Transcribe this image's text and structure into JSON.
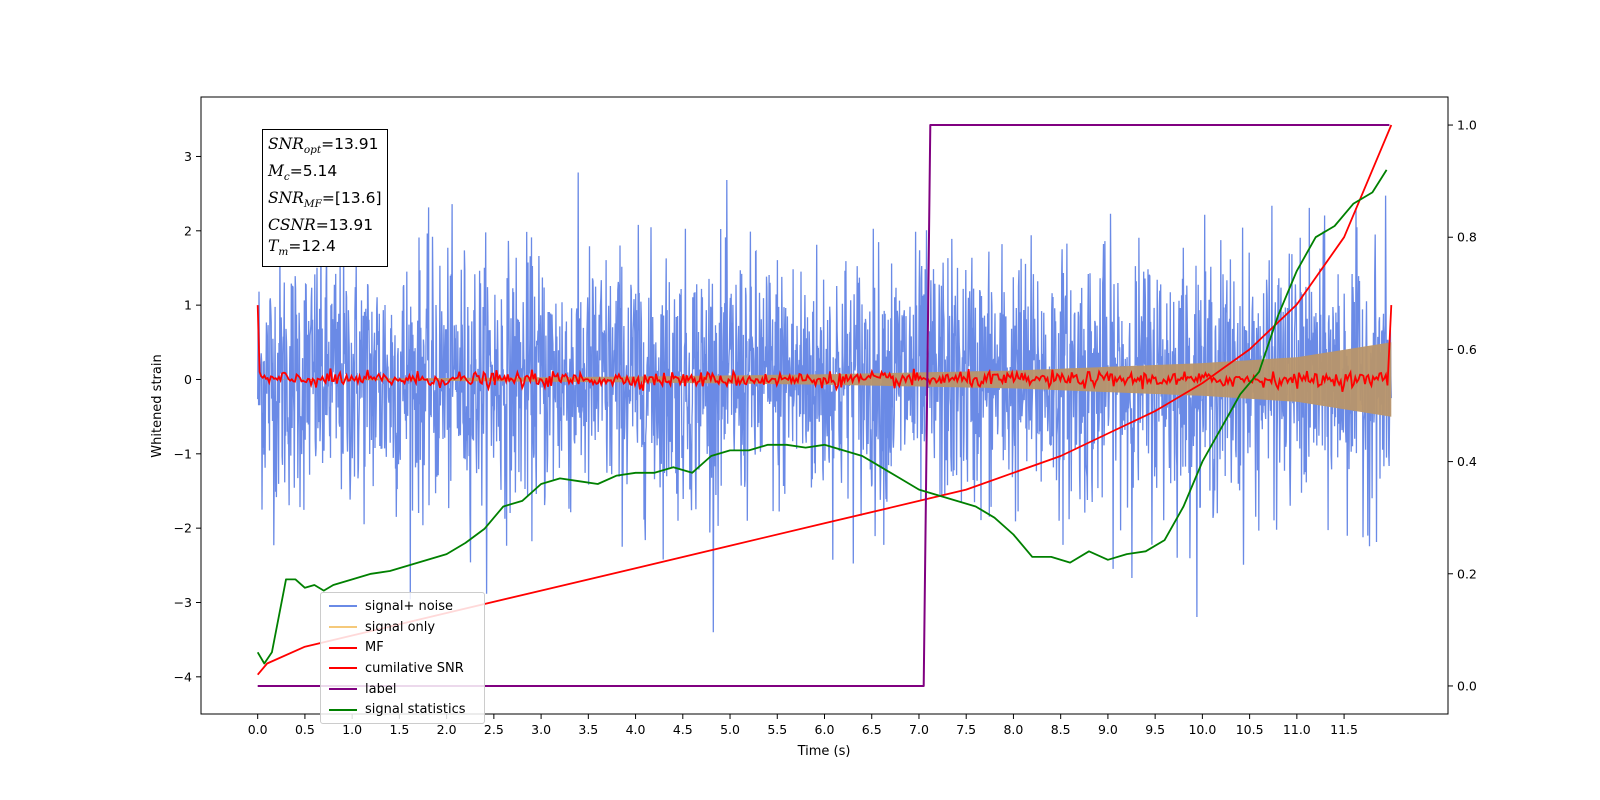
{
  "chart_data": {
    "type": "line",
    "xlabel": "Time (s)",
    "ylabel": "Whitened strain",
    "x_ticks": [
      "0.0",
      "0.5",
      "1.0",
      "1.5",
      "2.0",
      "2.5",
      "3.0",
      "3.5",
      "4.0",
      "4.5",
      "5.0",
      "5.5",
      "6.0",
      "6.5",
      "7.0",
      "7.5",
      "8.0",
      "8.5",
      "9.0",
      "9.5",
      "10.0",
      "10.5",
      "11.0",
      "11.5"
    ],
    "xlim": [
      -0.6,
      12.6
    ],
    "ylim_left": [
      -4.5,
      3.8
    ],
    "ylim_right": [
      -0.05,
      1.05
    ],
    "y_ticks_left": [
      "3",
      "2",
      "1",
      "0",
      "−1",
      "−2",
      "−3",
      "−4"
    ],
    "y_ticks_right": [
      "1.0",
      "0.8",
      "0.6",
      "0.4",
      "0.2",
      "0.0"
    ],
    "annotation": {
      "snr_opt_label": "SNR",
      "snr_opt_sub": "opt",
      "snr_opt_value": "=13.91",
      "mc_label": "M",
      "mc_sub": "c",
      "mc_value": "=5.14",
      "snr_mf_label": "SNR",
      "snr_mf_sub": "MF",
      "snr_mf_value": "=[13.6]",
      "csnr_label": "CSNR",
      "csnr_value": "=13.91",
      "tm_label": "T",
      "tm_sub": "m",
      "tm_value": "=12.4"
    },
    "series": [
      {
        "name": "signal+ noise",
        "color": "#6a8ae6",
        "axis": "left",
        "noise_sigma": 0.85,
        "t_range": [
          0,
          12
        ]
      },
      {
        "name": "signal only",
        "color": "#f5c97a",
        "axis": "left",
        "envelope": [
          [
            0,
            0.0
          ],
          [
            2,
            0.02
          ],
          [
            4,
            0.04
          ],
          [
            6,
            0.07
          ],
          [
            8,
            0.12
          ],
          [
            10,
            0.22
          ],
          [
            11,
            0.3
          ],
          [
            12,
            0.5
          ]
        ]
      },
      {
        "name": "MF",
        "color": "#ff0000",
        "axis": "left",
        "noise_sigma": 0.05,
        "t_range": [
          0,
          12
        ]
      },
      {
        "name": "cumilative SNR",
        "color": "#ff0000",
        "axis": "right",
        "x": [
          0.0,
          0.1,
          0.5,
          1.0,
          1.5,
          2.0,
          3.0,
          4.0,
          5.0,
          6.0,
          7.0,
          7.5,
          8.0,
          8.5,
          9.0,
          9.5,
          10.0,
          10.5,
          11.0,
          11.5,
          12.0
        ],
        "y": [
          0.02,
          0.04,
          0.07,
          0.09,
          0.11,
          0.13,
          0.17,
          0.21,
          0.25,
          0.29,
          0.33,
          0.35,
          0.38,
          0.41,
          0.45,
          0.49,
          0.54,
          0.6,
          0.68,
          0.8,
          1.0
        ]
      },
      {
        "name": "label",
        "color": "#800080",
        "axis": "right",
        "x": [
          0.0,
          7.05,
          7.12,
          11.98
        ],
        "y": [
          0.0,
          0.0,
          1.0,
          1.0
        ]
      },
      {
        "name": "signal statistics",
        "color": "#008000",
        "axis": "right",
        "x": [
          0.0,
          0.07,
          0.15,
          0.3,
          0.4,
          0.5,
          0.6,
          0.7,
          0.8,
          1.0,
          1.2,
          1.4,
          1.6,
          1.8,
          2.0,
          2.2,
          2.4,
          2.6,
          2.8,
          3.0,
          3.2,
          3.4,
          3.6,
          3.8,
          4.0,
          4.2,
          4.4,
          4.6,
          4.8,
          5.0,
          5.2,
          5.4,
          5.6,
          5.8,
          6.0,
          6.2,
          6.4,
          6.6,
          6.8,
          7.0,
          7.2,
          7.4,
          7.6,
          7.8,
          8.0,
          8.2,
          8.4,
          8.6,
          8.8,
          9.0,
          9.2,
          9.4,
          9.6,
          9.8,
          10.0,
          10.2,
          10.4,
          10.6,
          10.8,
          11.0,
          11.2,
          11.4,
          11.6,
          11.8,
          11.95
        ],
        "y": [
          0.06,
          0.04,
          0.06,
          0.19,
          0.19,
          0.175,
          0.18,
          0.17,
          0.18,
          0.19,
          0.2,
          0.205,
          0.215,
          0.225,
          0.235,
          0.255,
          0.28,
          0.32,
          0.33,
          0.36,
          0.37,
          0.365,
          0.36,
          0.375,
          0.38,
          0.38,
          0.39,
          0.38,
          0.41,
          0.42,
          0.42,
          0.43,
          0.43,
          0.425,
          0.43,
          0.42,
          0.41,
          0.39,
          0.37,
          0.35,
          0.34,
          0.33,
          0.32,
          0.3,
          0.27,
          0.23,
          0.23,
          0.22,
          0.24,
          0.225,
          0.235,
          0.24,
          0.26,
          0.32,
          0.4,
          0.46,
          0.52,
          0.56,
          0.66,
          0.74,
          0.8,
          0.82,
          0.86,
          0.88,
          0.92
        ]
      }
    ]
  }
}
